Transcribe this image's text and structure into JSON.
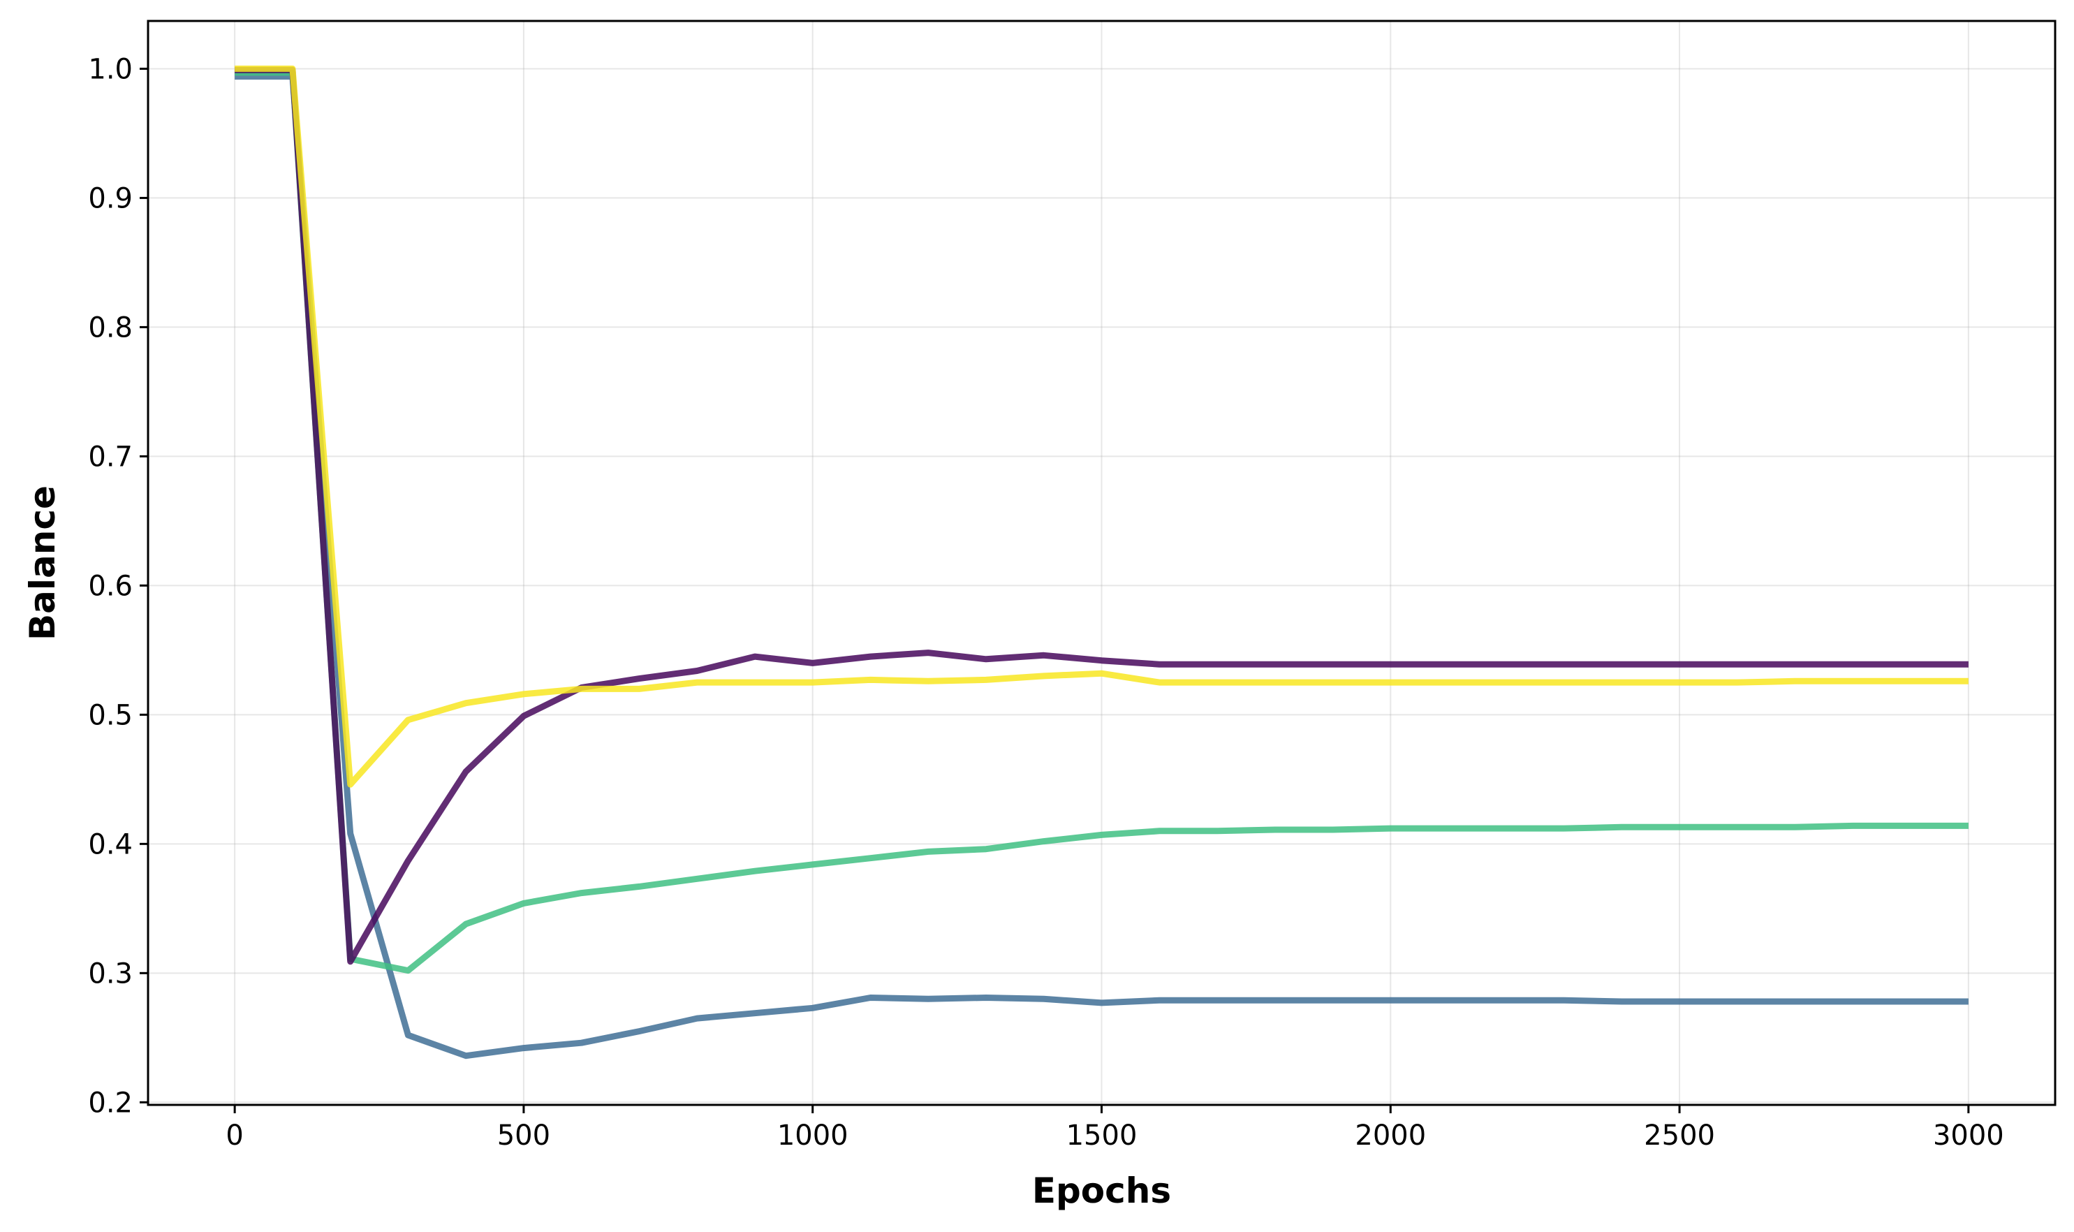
{
  "chart_data": {
    "type": "line",
    "title": "",
    "xlabel": "Epochs",
    "ylabel": "Balance",
    "xlim": [
      -150,
      3150
    ],
    "ylim": [
      0.198,
      1.037
    ],
    "xticks": [
      0,
      500,
      1000,
      1500,
      2000,
      2500,
      3000
    ],
    "xtick_labels": [
      "0",
      "500",
      "1000",
      "1500",
      "2000",
      "2500",
      "3000"
    ],
    "yticks": [
      0.2,
      0.3,
      0.4,
      0.5,
      0.6,
      0.7,
      0.8,
      0.9,
      1.0
    ],
    "ytick_labels": [
      "0.2",
      "0.3",
      "0.4",
      "0.5",
      "0.6",
      "0.7",
      "0.8",
      "0.9",
      "1.0"
    ],
    "grid": true,
    "x": [
      0,
      100,
      200,
      300,
      400,
      500,
      600,
      700,
      800,
      900,
      1000,
      1100,
      1200,
      1300,
      1400,
      1500,
      1600,
      1700,
      1800,
      1900,
      2000,
      2100,
      2200,
      2300,
      2400,
      2500,
      2600,
      2700,
      2800,
      2900,
      3000
    ],
    "series": [
      {
        "color": "#3f6f95",
        "values": [
          0.994,
          0.994,
          0.408,
          0.252,
          0.236,
          0.242,
          0.246,
          0.255,
          0.265,
          0.269,
          0.273,
          0.281,
          0.28,
          0.281,
          0.28,
          0.277,
          0.279,
          0.279,
          0.279,
          0.279,
          0.279,
          0.279,
          0.279,
          0.279,
          0.278,
          0.278,
          0.278,
          0.278,
          0.278,
          0.278,
          0.278
        ]
      },
      {
        "color": "#3fbf83",
        "values": [
          0.997,
          0.997,
          0.311,
          0.302,
          0.338,
          0.354,
          0.362,
          0.367,
          0.373,
          0.379,
          0.384,
          0.389,
          0.394,
          0.396,
          0.402,
          0.407,
          0.41,
          0.41,
          0.411,
          0.411,
          0.412,
          0.412,
          0.412,
          0.412,
          0.413,
          0.413,
          0.413,
          0.413,
          0.414,
          0.414,
          0.414
        ]
      },
      {
        "color": "#46085c",
        "values": [
          0.999,
          0.999,
          0.309,
          0.387,
          0.456,
          0.499,
          0.521,
          0.528,
          0.534,
          0.545,
          0.54,
          0.545,
          0.548,
          0.543,
          0.546,
          0.542,
          0.539,
          0.539,
          0.539,
          0.539,
          0.539,
          0.539,
          0.539,
          0.539,
          0.539,
          0.539,
          0.539,
          0.539,
          0.539,
          0.539,
          0.539
        ]
      },
      {
        "color": "#f8e621",
        "values": [
          1.0,
          1.0,
          0.446,
          0.496,
          0.509,
          0.516,
          0.52,
          0.52,
          0.525,
          0.525,
          0.525,
          0.527,
          0.526,
          0.527,
          0.53,
          0.532,
          0.525,
          0.525,
          0.525,
          0.525,
          0.525,
          0.525,
          0.525,
          0.525,
          0.525,
          0.525,
          0.525,
          0.526,
          0.526,
          0.526,
          0.526
        ]
      }
    ]
  }
}
